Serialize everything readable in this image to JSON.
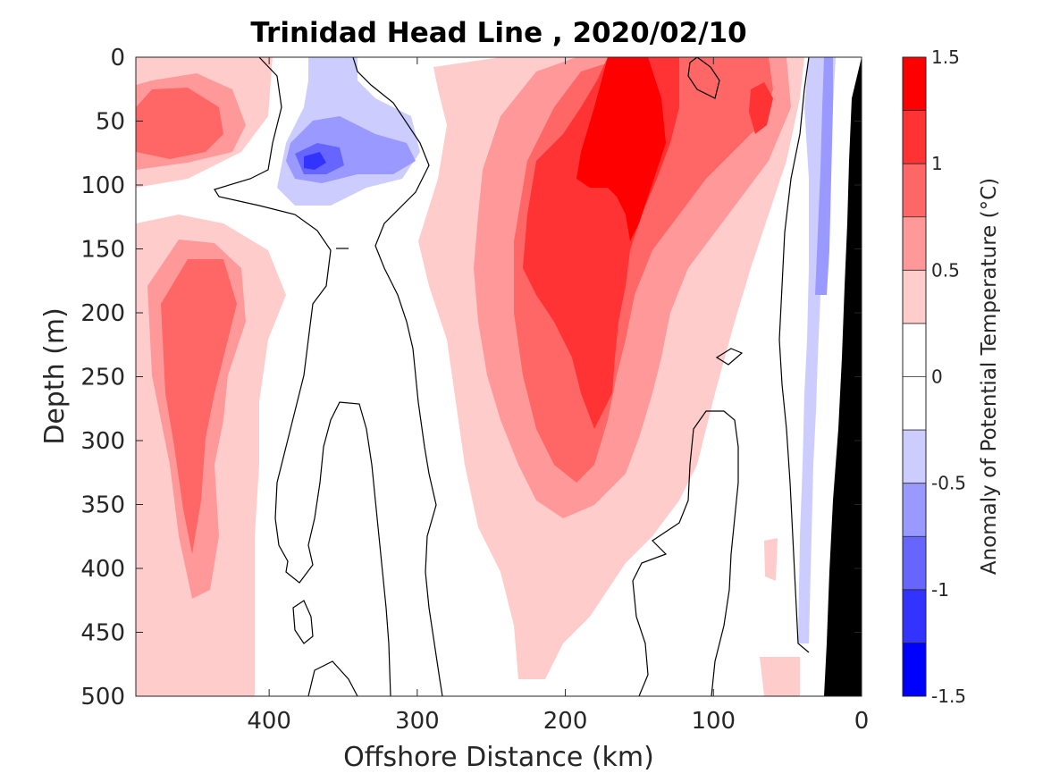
{
  "chart_data": {
    "type": "heatmap",
    "title": "Trinidad Head Line , 2020/02/10",
    "xlabel": "Offshore Distance (km)",
    "ylabel": "Depth (m)",
    "xlim": [
      490,
      0
    ],
    "ylim": [
      0,
      500
    ],
    "x_ticks": [
      "400",
      "300",
      "200",
      "100",
      "0"
    ],
    "y_ticks": [
      "0",
      "50",
      "100",
      "150",
      "200",
      "250",
      "300",
      "350",
      "400",
      "450",
      "500"
    ],
    "colorbar": {
      "label": "Anomaly of Potential Temperature (°C)",
      "range": [
        -1.5,
        1.5
      ],
      "step": 0.25,
      "ticks": [
        "1.5",
        "1",
        "0.5",
        "0",
        "-0.5",
        "-1",
        "-1.5"
      ],
      "levels": [
        {
          "lo": 1.25,
          "hi": 1.5,
          "color": "#ff0000"
        },
        {
          "lo": 1.0,
          "hi": 1.25,
          "color": "#ff3333"
        },
        {
          "lo": 0.75,
          "hi": 1.0,
          "color": "#ff6666"
        },
        {
          "lo": 0.5,
          "hi": 0.75,
          "color": "#ff9999"
        },
        {
          "lo": 0.25,
          "hi": 0.5,
          "color": "#ffcccc"
        },
        {
          "lo": -0.25,
          "hi": 0.25,
          "color": "#ffffff"
        },
        {
          "lo": -0.5,
          "hi": -0.25,
          "color": "#ccccff"
        },
        {
          "lo": -0.75,
          "hi": -0.5,
          "color": "#9999ff"
        },
        {
          "lo": -1.0,
          "hi": -0.75,
          "color": "#6666ff"
        },
        {
          "lo": -1.25,
          "hi": -1.0,
          "color": "#3333ff"
        },
        {
          "lo": -1.5,
          "hi": -1.25,
          "color": "#0000ff"
        }
      ]
    },
    "features": [
      {
        "kind": "warm-core",
        "x_center_km": 170,
        "depth_range_m": [
          0,
          330
        ],
        "peak_anomaly": 1.5
      },
      {
        "kind": "warm",
        "x_center_km": 460,
        "depth_range_m": [
          20,
          100
        ],
        "peak_anomaly": 1.0
      },
      {
        "kind": "warm",
        "x_center_km": 440,
        "depth_range_m": [
          140,
          440
        ],
        "peak_anomaly": 1.0
      },
      {
        "kind": "cold",
        "x_center_km": 370,
        "depth_range_m": [
          0,
          120
        ],
        "peak_anomaly": -1.25
      },
      {
        "kind": "cold",
        "x_center_km": 40,
        "depth_range_m": [
          0,
          460
        ],
        "peak_anomaly": -0.75
      }
    ],
    "land_mask_color": "#000000",
    "zero_contour_color": "#000000"
  }
}
